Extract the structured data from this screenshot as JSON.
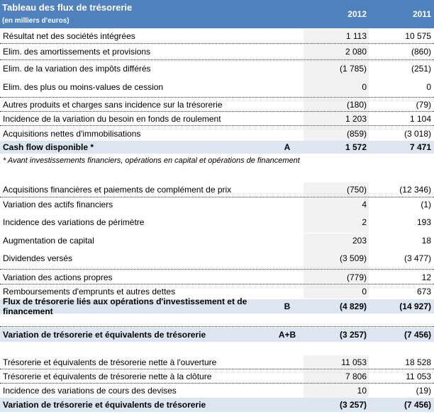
{
  "header": {
    "title": "Tableau des flux de trésorerie",
    "subtitle": "(en milliers d'euros)",
    "col1": "2012",
    "col2": "2011"
  },
  "rows": [
    {
      "label": "Résultat net des sociétés intégrées",
      "v2012": "1 113",
      "v2011": "10 575"
    },
    {
      "label": "Elim. des amortissements et provisions",
      "v2012": "2 080",
      "v2011": "(860)"
    },
    {
      "label": "Elim. de la variation des impôts différés",
      "v2012": "(1 785)",
      "v2011": "(251)"
    },
    {
      "label": "Elim. des plus ou moins-values de cession",
      "v2012": "0",
      "v2011": "0"
    },
    {
      "label": "Autres produits et charges sans incidence sur la trésorerie",
      "v2012": "(180)",
      "v2011": "(79)"
    },
    {
      "label": "Incidence de la variation du besoin en fonds de roulement",
      "v2012": "1 203",
      "v2011": "1 104"
    },
    {
      "label": "Acquisitions nettes d'immobilisations",
      "v2012": "(859)",
      "v2011": "(3 018)"
    },
    {
      "label": "Cash flow disponible *",
      "marker": "A",
      "v2012": "1 572",
      "v2011": "7 471",
      "total": true
    },
    {
      "label": "Acquisitions financières et paiements de complément de prix",
      "v2012": "(750)",
      "v2011": "(12 346)"
    },
    {
      "label": "Variation des actifs financiers",
      "v2012": "4",
      "v2011": "(1)"
    },
    {
      "label": "Incidence des variations de périmètre",
      "v2012": "2",
      "v2011": "193"
    },
    {
      "label": "Augmentation de capital",
      "v2012": "203",
      "v2011": "18"
    },
    {
      "label": "Dividendes versés",
      "v2012": "(3 509)",
      "v2011": "(3 477)"
    },
    {
      "label": "Variation des actions propres",
      "v2012": "(779)",
      "v2011": "12"
    },
    {
      "label": "Remboursements d'emprunts et autres dettes",
      "v2012": "0",
      "v2011": "673"
    },
    {
      "label": "Flux de trésorerie liés aux opérations d'investissement et de financement",
      "marker": "B",
      "v2012": "(4 829)",
      "v2011": "(14 927)",
      "total": true
    },
    {
      "label": "Variation de trésorerie et équivalents de trésorerie",
      "marker": "A+B",
      "v2012": "(3 257)",
      "v2011": "(7 456)",
      "total": true
    },
    {
      "label": "Trésorerie et équivalents de trésorerie nette à l'ouverture",
      "v2012": "11 053",
      "v2011": "18 528"
    },
    {
      "label": "Trésorerie et équivalents de trésorerie nette à la clôture",
      "v2012": "7 806",
      "v2011": "11 053"
    },
    {
      "label": "Incidence des variations de cours des devises",
      "v2012": "10",
      "v2011": "(19)"
    },
    {
      "label": "Variation de trésorerie et équivalents de trésorerie",
      "v2012": "(3 257)",
      "v2011": "(7 456)",
      "total": true
    }
  ],
  "footnote": "* Avant investissements financiers, opérations en capital et opérations de financement",
  "colors": {
    "header": "#4F81BD",
    "total_row": "#DCE6F1",
    "value_column": "#F2F2F2"
  }
}
